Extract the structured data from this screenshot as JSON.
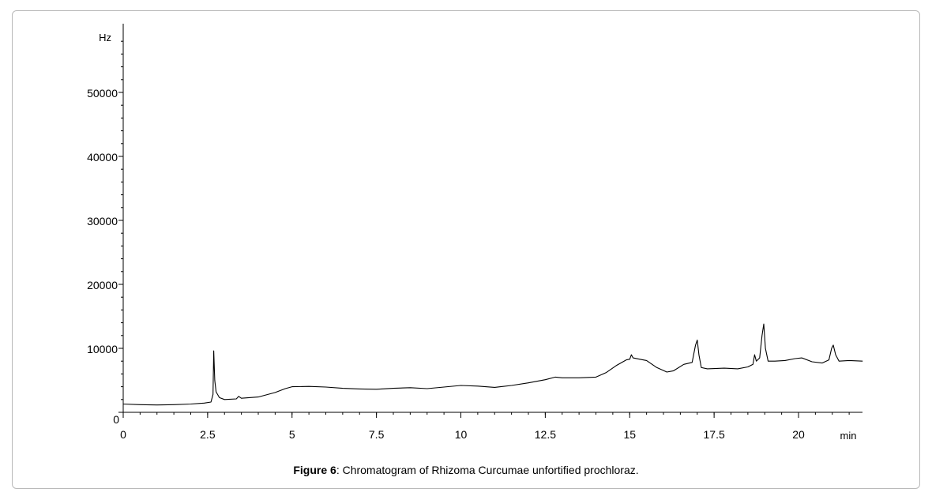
{
  "caption": {
    "label": "Figure 6",
    "text": ": Chromatogram of Rhizoma Curcumae unfortified prochloraz."
  },
  "chart_data": {
    "type": "line",
    "title": "",
    "xlabel": "min",
    "ylabel": "Hz",
    "xlim": [
      0,
      22
    ],
    "ylim": [
      0,
      58000
    ],
    "x_ticks": [
      "0",
      "2.5",
      "5",
      "7.5",
      "10",
      "12.5",
      "15",
      "17.5",
      "20"
    ],
    "y_ticks": [
      "0",
      "10000",
      "20000",
      "30000",
      "40000",
      "50000"
    ],
    "grid": false,
    "series": [
      {
        "color": "#000000",
        "points": [
          [
            0,
            1300
          ],
          [
            0.5,
            1200
          ],
          [
            1.0,
            1150
          ],
          [
            1.5,
            1200
          ],
          [
            2.0,
            1300
          ],
          [
            2.4,
            1450
          ],
          [
            2.6,
            1600
          ],
          [
            2.66,
            2800
          ],
          [
            2.68,
            9600
          ],
          [
            2.71,
            5000
          ],
          [
            2.75,
            3200
          ],
          [
            2.85,
            2300
          ],
          [
            3.0,
            2000
          ],
          [
            3.35,
            2100
          ],
          [
            3.42,
            2500
          ],
          [
            3.5,
            2200
          ],
          [
            4.0,
            2400
          ],
          [
            4.5,
            3100
          ],
          [
            4.8,
            3700
          ],
          [
            5.0,
            4000
          ],
          [
            5.5,
            4050
          ],
          [
            6.0,
            3950
          ],
          [
            6.5,
            3750
          ],
          [
            7.0,
            3650
          ],
          [
            7.5,
            3600
          ],
          [
            8.0,
            3750
          ],
          [
            8.5,
            3850
          ],
          [
            9.0,
            3700
          ],
          [
            9.5,
            3950
          ],
          [
            10.0,
            4200
          ],
          [
            10.5,
            4100
          ],
          [
            11.0,
            3900
          ],
          [
            11.5,
            4200
          ],
          [
            12.0,
            4600
          ],
          [
            12.5,
            5100
          ],
          [
            12.8,
            5500
          ],
          [
            13.0,
            5400
          ],
          [
            13.5,
            5400
          ],
          [
            14.0,
            5500
          ],
          [
            14.3,
            6200
          ],
          [
            14.6,
            7300
          ],
          [
            14.9,
            8200
          ],
          [
            15.0,
            8300
          ],
          [
            15.05,
            9000
          ],
          [
            15.1,
            8500
          ],
          [
            15.3,
            8300
          ],
          [
            15.5,
            8100
          ],
          [
            15.8,
            7000
          ],
          [
            16.1,
            6300
          ],
          [
            16.3,
            6500
          ],
          [
            16.6,
            7500
          ],
          [
            16.85,
            7800
          ],
          [
            16.95,
            10500
          ],
          [
            17.0,
            11300
          ],
          [
            17.05,
            9000
          ],
          [
            17.12,
            7000
          ],
          [
            17.3,
            6800
          ],
          [
            17.8,
            6900
          ],
          [
            18.2,
            6800
          ],
          [
            18.5,
            7100
          ],
          [
            18.65,
            7500
          ],
          [
            18.7,
            9000
          ],
          [
            18.75,
            8000
          ],
          [
            18.85,
            8500
          ],
          [
            18.92,
            12000
          ],
          [
            18.97,
            13800
          ],
          [
            19.02,
            10000
          ],
          [
            19.1,
            8000
          ],
          [
            19.3,
            8000
          ],
          [
            19.6,
            8100
          ],
          [
            19.9,
            8400
          ],
          [
            20.1,
            8500
          ],
          [
            20.4,
            7900
          ],
          [
            20.7,
            7700
          ],
          [
            20.9,
            8200
          ],
          [
            20.98,
            10000
          ],
          [
            21.03,
            10500
          ],
          [
            21.1,
            9000
          ],
          [
            21.2,
            8000
          ],
          [
            21.5,
            8100
          ],
          [
            21.9,
            8000
          ]
        ]
      }
    ]
  }
}
